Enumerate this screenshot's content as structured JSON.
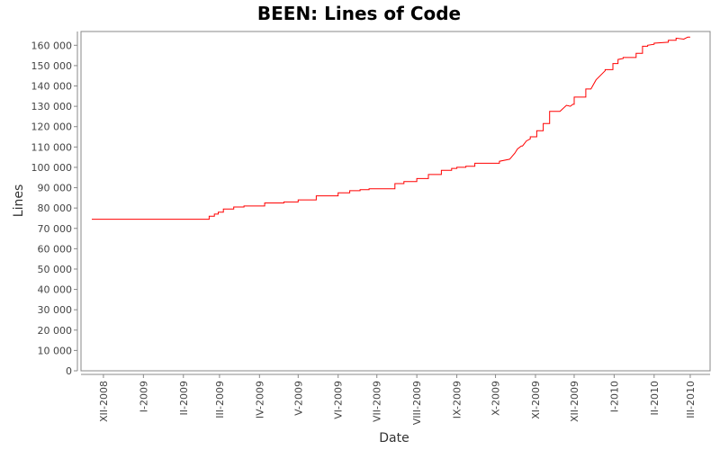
{
  "chart_data": {
    "type": "line",
    "title": "BEEN: Lines of Code",
    "xlabel": "Date",
    "ylabel": "Lines",
    "ylim": [
      0,
      165000
    ],
    "y_ticks": [
      0,
      10000,
      20000,
      30000,
      40000,
      50000,
      60000,
      70000,
      80000,
      90000,
      100000,
      110000,
      120000,
      130000,
      140000,
      150000,
      160000
    ],
    "y_tick_labels": [
      "0",
      "10 000",
      "20 000",
      "30 000",
      "40 000",
      "50 000",
      "60 000",
      "70 000",
      "80 000",
      "90 000",
      "100 000",
      "110 000",
      "120 000",
      "130 000",
      "140 000",
      "150 000",
      "160 000"
    ],
    "x_ticks": [
      "2008-12",
      "2009-01",
      "2009-02",
      "2009-03",
      "2009-04",
      "2009-05",
      "2009-06",
      "2009-07",
      "2009-08",
      "2009-09",
      "2009-10",
      "2009-11",
      "2009-12",
      "2010-01",
      "2010-02",
      "2010-03"
    ],
    "x_tick_labels": [
      "XII-2008",
      "I-2009",
      "II-2009",
      "III-2009",
      "IV-2009",
      "V-2009",
      "VI-2009",
      "VII-2009",
      "VIII-2009",
      "IX-2009",
      "X-2009",
      "XI-2009",
      "XII-2009",
      "I-2010",
      "II-2010",
      "III-2010"
    ],
    "xlim": [
      "2008-11-15",
      "2010-03-15"
    ],
    "grid": false,
    "line_color": "#ff0000",
    "series": [
      {
        "x": [
          "2008-11-22",
          "2009-02-21",
          "2009-02-21",
          "2009-02-25",
          "2009-02-25",
          "2009-02-28",
          "2009-02-28",
          "2009-03-04",
          "2009-03-04",
          "2009-03-12",
          "2009-03-12",
          "2009-03-20",
          "2009-03-20",
          "2009-04-05",
          "2009-04-05",
          "2009-04-20",
          "2009-04-20",
          "2009-05-01",
          "2009-05-01",
          "2009-05-15",
          "2009-05-15",
          "2009-06-01",
          "2009-06-01",
          "2009-06-10",
          "2009-06-10",
          "2009-06-18",
          "2009-06-18",
          "2009-06-25",
          "2009-06-25",
          "2009-07-15",
          "2009-07-15",
          "2009-07-22",
          "2009-07-22",
          "2009-08-01",
          "2009-08-01",
          "2009-08-10",
          "2009-08-10",
          "2009-08-20",
          "2009-08-20",
          "2009-08-28",
          "2009-08-28",
          "2009-09-01",
          "2009-09-01",
          "2009-09-08",
          "2009-09-08",
          "2009-09-15",
          "2009-09-15",
          "2009-10-04",
          "2009-10-04",
          "2009-10-12",
          "2009-10-16",
          "2009-10-18",
          "2009-10-21",
          "2009-10-22",
          "2009-10-25",
          "2009-10-28",
          "2009-10-28",
          "2009-11-02",
          "2009-11-02",
          "2009-11-07",
          "2009-11-07",
          "2009-11-12",
          "2009-11-12",
          "2009-11-20",
          "2009-11-25",
          "2009-11-28",
          "2009-11-30",
          "2009-12-01",
          "2009-12-01",
          "2009-12-10",
          "2009-12-10",
          "2009-12-14",
          "2009-12-18",
          "2009-12-18",
          "2009-12-25",
          "2009-12-25",
          "2009-12-31",
          "2009-12-31",
          "2010-01-04",
          "2010-01-04",
          "2010-01-08",
          "2010-01-08",
          "2010-01-18",
          "2010-01-18",
          "2010-01-23",
          "2010-01-23",
          "2010-01-27",
          "2010-01-27",
          "2010-02-01",
          "2010-02-01",
          "2010-02-12",
          "2010-02-12",
          "2010-02-18",
          "2010-02-18",
          "2010-02-24",
          "2010-02-27",
          "2010-03-01"
        ],
        "y": [
          74500,
          74500,
          76000,
          76000,
          77000,
          77000,
          78000,
          78000,
          79500,
          79500,
          80500,
          80500,
          81000,
          81000,
          82500,
          82500,
          83000,
          83000,
          84000,
          84000,
          86000,
          86000,
          87500,
          87500,
          88500,
          88500,
          89000,
          89000,
          89500,
          89500,
          92000,
          92000,
          93000,
          93000,
          94500,
          94500,
          96500,
          96500,
          98500,
          98500,
          99500,
          99500,
          100000,
          100000,
          100500,
          100500,
          102000,
          102000,
          103000,
          104000,
          107000,
          109000,
          110500,
          110500,
          113000,
          114000,
          115000,
          115000,
          118000,
          118000,
          121500,
          121500,
          127500,
          127500,
          130500,
          130000,
          131000,
          131000,
          134500,
          134500,
          138500,
          138500,
          143000,
          143000,
          147500,
          148000,
          148000,
          151000,
          151000,
          153000,
          153500,
          154000,
          154000,
          156000,
          156000,
          159500,
          159500,
          160000,
          160500,
          161000,
          161500,
          162500,
          162500,
          163500,
          163000,
          164000,
          164000
        ]
      }
    ]
  }
}
